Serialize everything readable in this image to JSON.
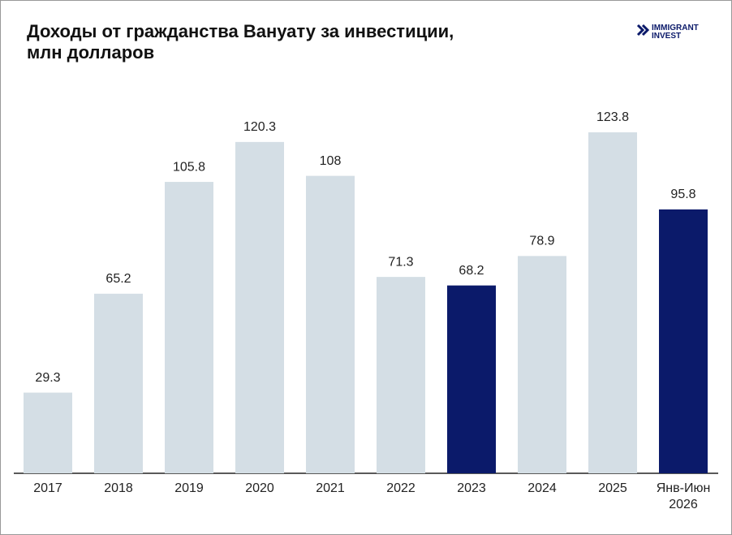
{
  "chart_data": {
    "type": "bar",
    "title": [
      "Доходы от гражданства Вануату за инвестиции,",
      "млн долларов"
    ],
    "brand": [
      "IMMIGRANT",
      "INVEST"
    ],
    "categories": [
      "2017",
      "2018",
      "2019",
      "2020",
      "2021",
      "2022",
      "2023",
      "2024",
      "2025",
      "Янв-Июн 2026"
    ],
    "values": [
      29.3,
      65.2,
      105.8,
      120.3,
      108,
      71.3,
      68.2,
      78.9,
      123.8,
      95.8
    ],
    "colors": [
      "#d4dee5",
      "#d4dee5",
      "#d4dee5",
      "#d4dee5",
      "#d4dee5",
      "#d4dee5",
      "#0b1a6a",
      "#d4dee5",
      "#d4dee5",
      "#0b1a6a"
    ]
  }
}
